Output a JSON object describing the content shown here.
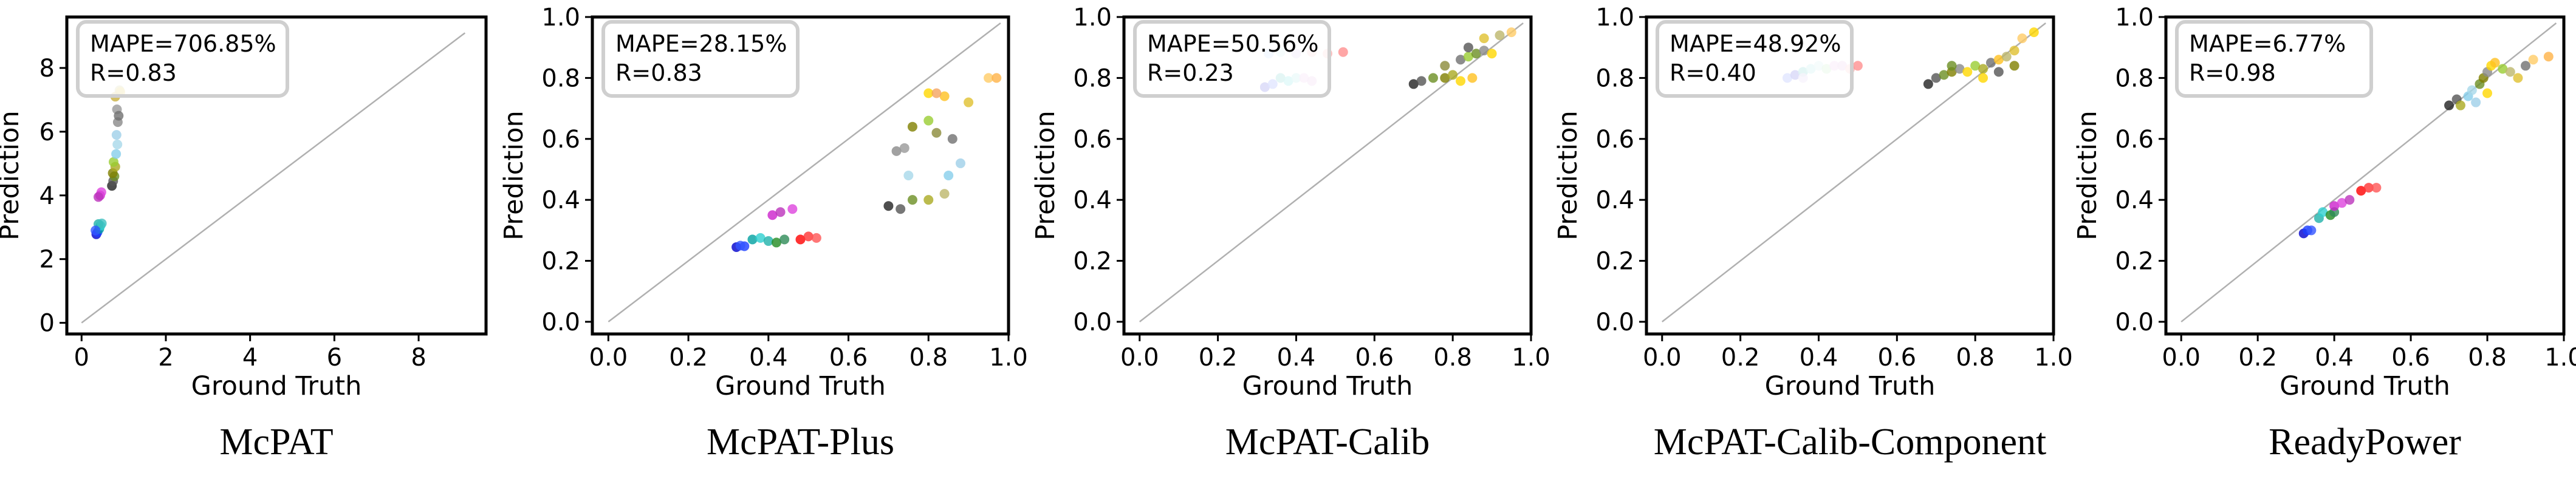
{
  "chart_data": [
    {
      "type": "scatter",
      "caption": "McPAT",
      "xlabel": "Ground Truth",
      "ylabel": "Prediction",
      "xlim": [
        -0.35,
        9.6
      ],
      "ylim": [
        -0.35,
        9.6
      ],
      "xticks": [
        0,
        2,
        4,
        6,
        8
      ],
      "yticks": [
        0,
        2,
        4,
        6,
        8
      ],
      "xtick_labels": [
        "0",
        "2",
        "4",
        "6",
        "8"
      ],
      "ytick_labels": [
        "0",
        "2",
        "4",
        "6",
        "8"
      ],
      "diagonal": [
        0,
        9.1
      ],
      "metrics": [
        "MAPE=706.85%",
        "R=0.83"
      ],
      "legend": "top-left",
      "points": [
        {
          "x": 0.35,
          "y": 2.78,
          "color": "#0000cc"
        },
        {
          "x": 0.38,
          "y": 2.85,
          "color": "#1a3dff"
        },
        {
          "x": 0.42,
          "y": 2.95,
          "color": "#00a0a0"
        },
        {
          "x": 0.45,
          "y": 3.05,
          "color": "#2ecfcf"
        },
        {
          "x": 0.4,
          "y": 3.1,
          "color": "#20b2aa"
        },
        {
          "x": 0.48,
          "y": 3.12,
          "color": "#40c0c0"
        },
        {
          "x": 0.33,
          "y": 2.9,
          "color": "#3355ff"
        },
        {
          "x": 0.44,
          "y": 4.0,
          "color": "#cc22cc"
        },
        {
          "x": 0.47,
          "y": 4.1,
          "color": "#dd44dd"
        },
        {
          "x": 0.4,
          "y": 3.95,
          "color": "#bb33bb"
        },
        {
          "x": 0.72,
          "y": 4.3,
          "color": "#222222"
        },
        {
          "x": 0.75,
          "y": 4.45,
          "color": "#555555"
        },
        {
          "x": 0.78,
          "y": 4.6,
          "color": "#6b8e23"
        },
        {
          "x": 0.74,
          "y": 4.7,
          "color": "#808000"
        },
        {
          "x": 0.8,
          "y": 4.9,
          "color": "#aaaa22"
        },
        {
          "x": 0.76,
          "y": 5.05,
          "color": "#9acd32"
        },
        {
          "x": 0.82,
          "y": 5.3,
          "color": "#87ceeb"
        },
        {
          "x": 0.85,
          "y": 5.6,
          "color": "#a8d8ea"
        },
        {
          "x": 0.83,
          "y": 5.9,
          "color": "#9fd0e8"
        },
        {
          "x": 0.86,
          "y": 6.3,
          "color": "#8a8a8a"
        },
        {
          "x": 0.84,
          "y": 6.7,
          "color": "#999999"
        },
        {
          "x": 0.88,
          "y": 6.5,
          "color": "#707070"
        },
        {
          "x": 0.9,
          "y": 7.3,
          "color": "#bdb76b"
        },
        {
          "x": 0.92,
          "y": 7.25,
          "color": "#e0c030"
        },
        {
          "x": 0.8,
          "y": 7.1,
          "color": "#c9b040"
        }
      ]
    },
    {
      "type": "scatter",
      "caption": "McPAT-Plus",
      "xlabel": "Ground Truth",
      "ylabel": "Prediction",
      "xlim": [
        -0.04,
        1.0
      ],
      "ylim": [
        -0.04,
        1.0
      ],
      "xticks": [
        0,
        0.2,
        0.4,
        0.6,
        0.8,
        1.0
      ],
      "yticks": [
        0,
        0.2,
        0.4,
        0.6,
        0.8,
        1.0
      ],
      "xtick_labels": [
        "0.0",
        "0.2",
        "0.4",
        "0.6",
        "0.8",
        "1.0"
      ],
      "ytick_labels": [
        "0.0",
        "0.2",
        "0.4",
        "0.6",
        "0.8",
        "1.0"
      ],
      "diagonal": [
        0,
        0.98
      ],
      "metrics": [
        "MAPE=28.15%",
        "R=0.83"
      ],
      "legend": "top-left",
      "points": [
        {
          "x": 0.32,
          "y": 0.245,
          "color": "#0000cc"
        },
        {
          "x": 0.34,
          "y": 0.248,
          "color": "#1a3dff"
        },
        {
          "x": 0.33,
          "y": 0.25,
          "color": "#3355ff"
        },
        {
          "x": 0.36,
          "y": 0.27,
          "color": "#00a0a0"
        },
        {
          "x": 0.38,
          "y": 0.275,
          "color": "#2ecfcf"
        },
        {
          "x": 0.4,
          "y": 0.265,
          "color": "#20b2aa"
        },
        {
          "x": 0.42,
          "y": 0.26,
          "color": "#228b22"
        },
        {
          "x": 0.44,
          "y": 0.27,
          "color": "#2e8b57"
        },
        {
          "x": 0.41,
          "y": 0.35,
          "color": "#cc22cc"
        },
        {
          "x": 0.43,
          "y": 0.36,
          "color": "#bb33bb"
        },
        {
          "x": 0.46,
          "y": 0.37,
          "color": "#dd44dd"
        },
        {
          "x": 0.48,
          "y": 0.27,
          "color": "#ff0000"
        },
        {
          "x": 0.5,
          "y": 0.28,
          "color": "#ff3333"
        },
        {
          "x": 0.52,
          "y": 0.275,
          "color": "#ff5555"
        },
        {
          "x": 0.7,
          "y": 0.38,
          "color": "#222222"
        },
        {
          "x": 0.73,
          "y": 0.37,
          "color": "#555555"
        },
        {
          "x": 0.76,
          "y": 0.4,
          "color": "#6b8e23"
        },
        {
          "x": 0.8,
          "y": 0.4,
          "color": "#aaaa22"
        },
        {
          "x": 0.84,
          "y": 0.42,
          "color": "#bdb76b"
        },
        {
          "x": 0.72,
          "y": 0.56,
          "color": "#8a8a8a"
        },
        {
          "x": 0.74,
          "y": 0.57,
          "color": "#999999"
        },
        {
          "x": 0.75,
          "y": 0.48,
          "color": "#a8d8ea"
        },
        {
          "x": 0.85,
          "y": 0.48,
          "color": "#87ceeb"
        },
        {
          "x": 0.88,
          "y": 0.52,
          "color": "#9fd0e8"
        },
        {
          "x": 0.76,
          "y": 0.64,
          "color": "#808000"
        },
        {
          "x": 0.8,
          "y": 0.66,
          "color": "#9acd32"
        },
        {
          "x": 0.82,
          "y": 0.62,
          "color": "#8b8b3a"
        },
        {
          "x": 0.86,
          "y": 0.6,
          "color": "#707070"
        },
        {
          "x": 0.8,
          "y": 0.75,
          "color": "#ffd700"
        },
        {
          "x": 0.84,
          "y": 0.74,
          "color": "#ffc020"
        },
        {
          "x": 0.9,
          "y": 0.72,
          "color": "#e0c030"
        },
        {
          "x": 0.95,
          "y": 0.8,
          "color": "#ffcc66"
        },
        {
          "x": 0.97,
          "y": 0.8,
          "color": "#ffb347"
        },
        {
          "x": 0.82,
          "y": 0.75,
          "color": "#f4a460"
        }
      ]
    },
    {
      "type": "scatter",
      "caption": "McPAT-Calib",
      "xlabel": "Ground Truth",
      "ylabel": "Prediction",
      "xlim": [
        -0.04,
        1.0
      ],
      "ylim": [
        -0.04,
        1.0
      ],
      "xticks": [
        0,
        0.2,
        0.4,
        0.6,
        0.8,
        1.0
      ],
      "yticks": [
        0,
        0.2,
        0.4,
        0.6,
        0.8,
        1.0
      ],
      "xtick_labels": [
        "0.0",
        "0.2",
        "0.4",
        "0.6",
        "0.8",
        "1.0"
      ],
      "ytick_labels": [
        "0.0",
        "0.2",
        "0.4",
        "0.6",
        "0.8",
        "1.0"
      ],
      "diagonal": [
        0,
        0.98
      ],
      "metrics": [
        "MAPE=50.56%",
        "R=0.23"
      ],
      "legend": "top-left",
      "points": [
        {
          "x": 0.32,
          "y": 0.77,
          "color": "#0000cc"
        },
        {
          "x": 0.34,
          "y": 0.78,
          "color": "#3355ff"
        },
        {
          "x": 0.36,
          "y": 0.8,
          "color": "#20b2aa"
        },
        {
          "x": 0.38,
          "y": 0.79,
          "color": "#2ecfcf"
        },
        {
          "x": 0.4,
          "y": 0.8,
          "color": "#7fd8d8"
        },
        {
          "x": 0.42,
          "y": 0.8,
          "color": "#e6a8e6"
        },
        {
          "x": 0.44,
          "y": 0.79,
          "color": "#d8a0d8"
        },
        {
          "x": 0.33,
          "y": 0.88,
          "color": "#a0c8ff"
        },
        {
          "x": 0.36,
          "y": 0.885,
          "color": "#b0e0e6"
        },
        {
          "x": 0.4,
          "y": 0.88,
          "color": "#c8b4e8"
        },
        {
          "x": 0.44,
          "y": 0.885,
          "color": "#f0b0b0"
        },
        {
          "x": 0.48,
          "y": 0.88,
          "color": "#ffb0b0"
        },
        {
          "x": 0.52,
          "y": 0.885,
          "color": "#ff9090"
        },
        {
          "x": 0.7,
          "y": 0.78,
          "color": "#222222"
        },
        {
          "x": 0.72,
          "y": 0.79,
          "color": "#555555"
        },
        {
          "x": 0.75,
          "y": 0.8,
          "color": "#6b8e23"
        },
        {
          "x": 0.78,
          "y": 0.8,
          "color": "#808000"
        },
        {
          "x": 0.8,
          "y": 0.81,
          "color": "#aaaa22"
        },
        {
          "x": 0.82,
          "y": 0.79,
          "color": "#ffd700"
        },
        {
          "x": 0.85,
          "y": 0.8,
          "color": "#ffc020"
        },
        {
          "x": 0.78,
          "y": 0.84,
          "color": "#8b8b3a"
        },
        {
          "x": 0.82,
          "y": 0.86,
          "color": "#707070"
        },
        {
          "x": 0.84,
          "y": 0.87,
          "color": "#9acd32"
        },
        {
          "x": 0.86,
          "y": 0.88,
          "color": "#6b8e23"
        },
        {
          "x": 0.88,
          "y": 0.89,
          "color": "#8a8a8a"
        },
        {
          "x": 0.9,
          "y": 0.88,
          "color": "#ffd700"
        },
        {
          "x": 0.92,
          "y": 0.94,
          "color": "#bdb76b"
        },
        {
          "x": 0.95,
          "y": 0.95,
          "color": "#ffcc66"
        },
        {
          "x": 0.88,
          "y": 0.93,
          "color": "#e0c030"
        },
        {
          "x": 0.84,
          "y": 0.9,
          "color": "#555555"
        }
      ]
    },
    {
      "type": "scatter",
      "caption": "McPAT-Calib-Component",
      "xlabel": "Ground Truth",
      "ylabel": "Prediction",
      "xlim": [
        -0.04,
        1.0
      ],
      "ylim": [
        -0.04,
        1.0
      ],
      "xticks": [
        0,
        0.2,
        0.4,
        0.6,
        0.8,
        1.0
      ],
      "yticks": [
        0,
        0.2,
        0.4,
        0.6,
        0.8,
        1.0
      ],
      "xtick_labels": [
        "0.0",
        "0.2",
        "0.4",
        "0.6",
        "0.8",
        "1.0"
      ],
      "ytick_labels": [
        "0.0",
        "0.2",
        "0.4",
        "0.6",
        "0.8",
        "1.0"
      ],
      "diagonal": [
        0,
        0.98
      ],
      "metrics": [
        "MAPE=48.92%",
        "R=0.40"
      ],
      "legend": "top-left",
      "points": [
        {
          "x": 0.32,
          "y": 0.8,
          "color": "#3355ff"
        },
        {
          "x": 0.34,
          "y": 0.81,
          "color": "#0000cc"
        },
        {
          "x": 0.36,
          "y": 0.82,
          "color": "#20b2aa"
        },
        {
          "x": 0.38,
          "y": 0.83,
          "color": "#7fd8d8"
        },
        {
          "x": 0.4,
          "y": 0.84,
          "color": "#b0e0e6"
        },
        {
          "x": 0.42,
          "y": 0.83,
          "color": "#a0e0a0"
        },
        {
          "x": 0.44,
          "y": 0.84,
          "color": "#e6a8e6"
        },
        {
          "x": 0.46,
          "y": 0.84,
          "color": "#d8a0d8"
        },
        {
          "x": 0.48,
          "y": 0.83,
          "color": "#ffb0b0"
        },
        {
          "x": 0.5,
          "y": 0.84,
          "color": "#ff9090"
        },
        {
          "x": 0.36,
          "y": 0.8,
          "color": "#c8b4e8"
        },
        {
          "x": 0.68,
          "y": 0.78,
          "color": "#222222"
        },
        {
          "x": 0.7,
          "y": 0.8,
          "color": "#555555"
        },
        {
          "x": 0.72,
          "y": 0.81,
          "color": "#6b8e23"
        },
        {
          "x": 0.74,
          "y": 0.82,
          "color": "#808000"
        },
        {
          "x": 0.76,
          "y": 0.83,
          "color": "#8a8a8a"
        },
        {
          "x": 0.78,
          "y": 0.82,
          "color": "#ffd700"
        },
        {
          "x": 0.8,
          "y": 0.84,
          "color": "#9acd32"
        },
        {
          "x": 0.82,
          "y": 0.83,
          "color": "#aaaa22"
        },
        {
          "x": 0.84,
          "y": 0.85,
          "color": "#707070"
        },
        {
          "x": 0.86,
          "y": 0.86,
          "color": "#ffc020"
        },
        {
          "x": 0.88,
          "y": 0.87,
          "color": "#bdb76b"
        },
        {
          "x": 0.9,
          "y": 0.89,
          "color": "#e0c030"
        },
        {
          "x": 0.92,
          "y": 0.93,
          "color": "#ffcc66"
        },
        {
          "x": 0.95,
          "y": 0.95,
          "color": "#ffd700"
        },
        {
          "x": 0.82,
          "y": 0.8,
          "color": "#ffd700"
        },
        {
          "x": 0.86,
          "y": 0.82,
          "color": "#555555"
        },
        {
          "x": 0.74,
          "y": 0.84,
          "color": "#6b8e23"
        },
        {
          "x": 0.9,
          "y": 0.84,
          "color": "#808000"
        }
      ]
    },
    {
      "type": "scatter",
      "caption": "ReadyPower",
      "xlabel": "Ground Truth",
      "ylabel": "Prediction",
      "xlim": [
        -0.04,
        1.0
      ],
      "ylim": [
        -0.04,
        1.0
      ],
      "xticks": [
        0,
        0.2,
        0.4,
        0.6,
        0.8,
        1.0
      ],
      "yticks": [
        0,
        0.2,
        0.4,
        0.6,
        0.8,
        1.0
      ],
      "xtick_labels": [
        "0.0",
        "0.2",
        "0.4",
        "0.6",
        "0.8",
        "1.0"
      ],
      "ytick_labels": [
        "0.0",
        "0.2",
        "0.4",
        "0.6",
        "0.8",
        "1.0"
      ],
      "diagonal": [
        0,
        0.98
      ],
      "metrics": [
        "MAPE=6.77%",
        "R=0.98"
      ],
      "legend": "top-left",
      "points": [
        {
          "x": 0.32,
          "y": 0.29,
          "color": "#0000cc"
        },
        {
          "x": 0.33,
          "y": 0.3,
          "color": "#1a3dff"
        },
        {
          "x": 0.34,
          "y": 0.3,
          "color": "#3355ff"
        },
        {
          "x": 0.36,
          "y": 0.34,
          "color": "#20b2aa"
        },
        {
          "x": 0.37,
          "y": 0.36,
          "color": "#2ecfcf"
        },
        {
          "x": 0.39,
          "y": 0.35,
          "color": "#228b22"
        },
        {
          "x": 0.4,
          "y": 0.36,
          "color": "#2e8b57"
        },
        {
          "x": 0.4,
          "y": 0.38,
          "color": "#cc22cc"
        },
        {
          "x": 0.42,
          "y": 0.39,
          "color": "#dd44dd"
        },
        {
          "x": 0.44,
          "y": 0.4,
          "color": "#bb33bb"
        },
        {
          "x": 0.47,
          "y": 0.43,
          "color": "#ff0000"
        },
        {
          "x": 0.49,
          "y": 0.44,
          "color": "#ff3333"
        },
        {
          "x": 0.51,
          "y": 0.44,
          "color": "#ff5555"
        },
        {
          "x": 0.7,
          "y": 0.71,
          "color": "#222222"
        },
        {
          "x": 0.72,
          "y": 0.73,
          "color": "#555555"
        },
        {
          "x": 0.73,
          "y": 0.71,
          "color": "#aaaa22"
        },
        {
          "x": 0.75,
          "y": 0.74,
          "color": "#87ceeb"
        },
        {
          "x": 0.76,
          "y": 0.76,
          "color": "#a8d8ea"
        },
        {
          "x": 0.78,
          "y": 0.78,
          "color": "#6b8e23"
        },
        {
          "x": 0.79,
          "y": 0.8,
          "color": "#808000"
        },
        {
          "x": 0.8,
          "y": 0.82,
          "color": "#8a8a8a"
        },
        {
          "x": 0.81,
          "y": 0.84,
          "color": "#ffd700"
        },
        {
          "x": 0.82,
          "y": 0.85,
          "color": "#ffc020"
        },
        {
          "x": 0.84,
          "y": 0.83,
          "color": "#9acd32"
        },
        {
          "x": 0.86,
          "y": 0.82,
          "color": "#bdb76b"
        },
        {
          "x": 0.88,
          "y": 0.8,
          "color": "#e0c030"
        },
        {
          "x": 0.9,
          "y": 0.84,
          "color": "#707070"
        },
        {
          "x": 0.92,
          "y": 0.86,
          "color": "#ffcc66"
        },
        {
          "x": 0.96,
          "y": 0.87,
          "color": "#ffb347"
        },
        {
          "x": 0.77,
          "y": 0.72,
          "color": "#9fd0e8"
        },
        {
          "x": 0.8,
          "y": 0.75,
          "color": "#ffd700"
        }
      ]
    }
  ]
}
